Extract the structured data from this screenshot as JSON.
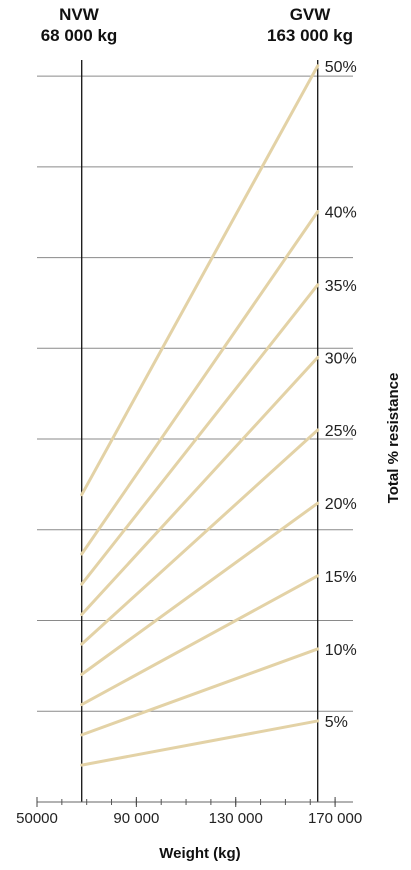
{
  "header": {
    "left_title": "NVW",
    "left_value": "68 000 kg",
    "right_title": "GVW",
    "right_value": "163 000 kg"
  },
  "chart_data": {
    "type": "line",
    "title": "",
    "xlabel": "Weight (kg)",
    "ylabel": "Total % resistance",
    "x_ticks": [
      "50000",
      "90 000",
      "130 000",
      "170 000"
    ],
    "x_tick_values": [
      50000,
      90000,
      130000,
      170000
    ],
    "xlim": [
      50000,
      176000
    ],
    "x_start": 68000,
    "x_end": 163000,
    "line_color": "#e3d2a6",
    "grid": true,
    "series": [
      {
        "name": "5%",
        "start": 6.1,
        "end": 13.4
      },
      {
        "name": "10%",
        "start": 11.1,
        "end": 25.3
      },
      {
        "name": "15%",
        "start": 16.1,
        "end": 37.4
      },
      {
        "name": "20%",
        "start": 21.1,
        "end": 49.4
      },
      {
        "name": "25%",
        "start": 26.1,
        "end": 61.5
      },
      {
        "name": "30%",
        "start": 31.0,
        "end": 73.5
      },
      {
        "name": "35%",
        "start": 36.0,
        "end": 85.5
      },
      {
        "name": "40%",
        "start": 41.0,
        "end": 97.6
      },
      {
        "name": "50%",
        "start": 50.8,
        "end": 121.7
      }
    ],
    "y_grid_values": [
      0,
      15,
      30,
      45,
      60,
      75,
      90,
      105,
      120
    ],
    "ylim": [
      0,
      122
    ]
  }
}
